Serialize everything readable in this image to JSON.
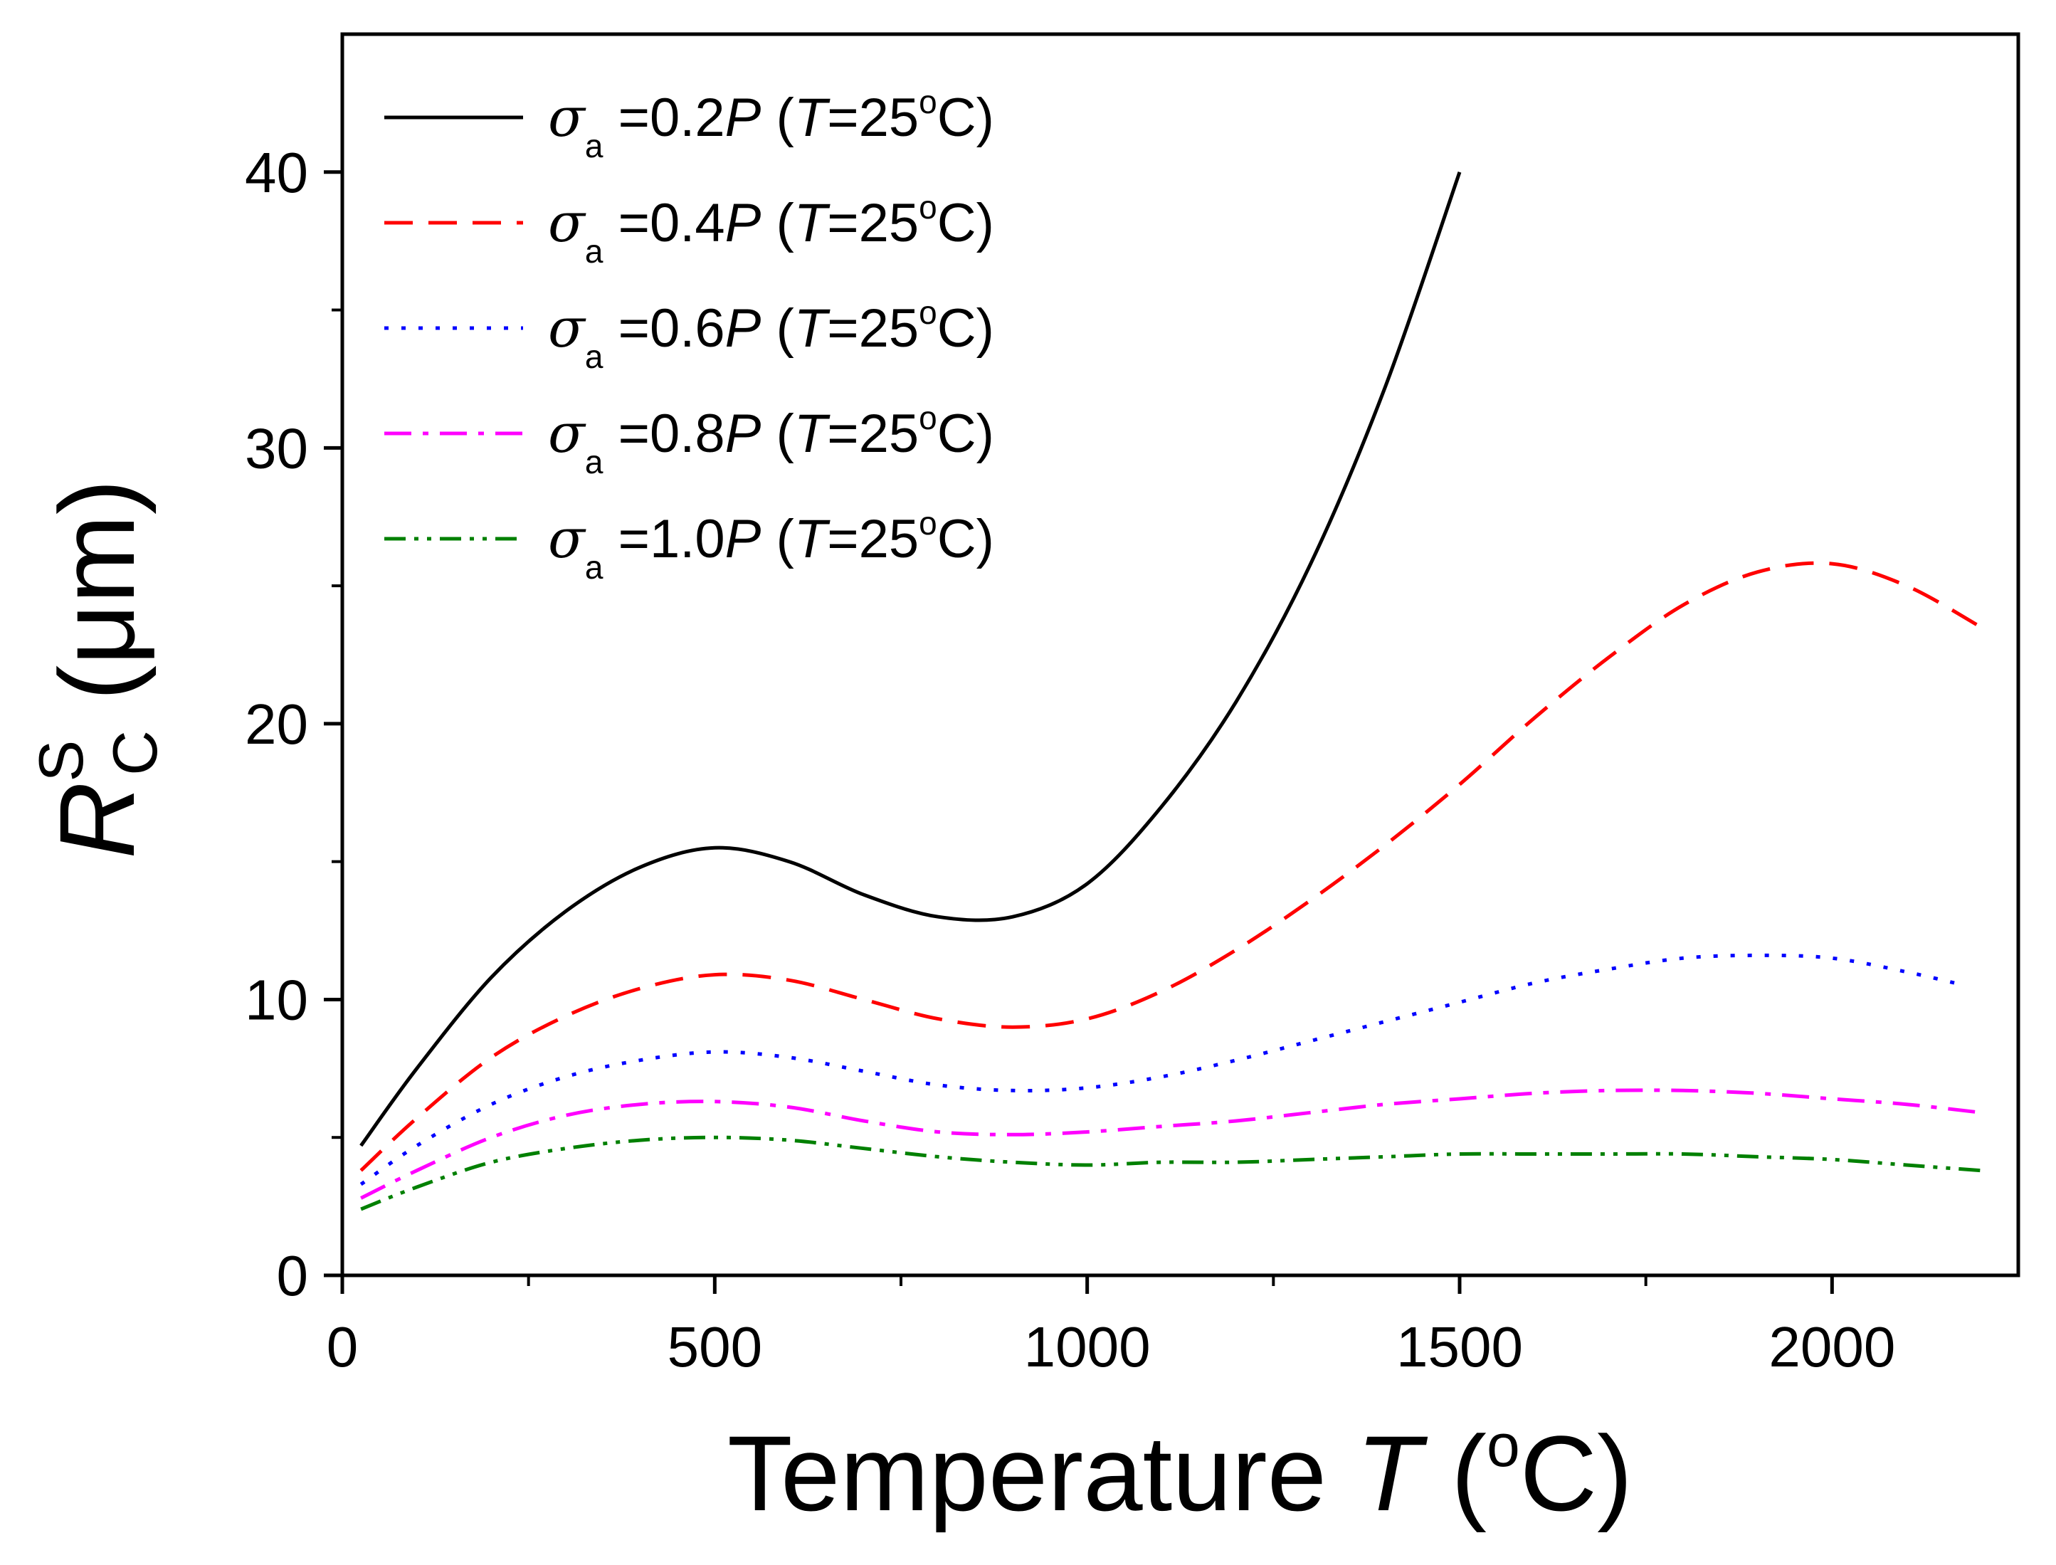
{
  "chart_data": {
    "type": "line",
    "xlabel": {
      "prefix": "Temperature ",
      "var": "T",
      "unit_open": " (",
      "deg": "o",
      "unit_close": "C)"
    },
    "ylabel": {
      "var": "R",
      "sup": "S",
      "sub": "C",
      "unit": " (μm)"
    },
    "xlim": [
      0,
      2250
    ],
    "ylim": [
      0,
      45
    ],
    "xticks": [
      0,
      500,
      1000,
      1500,
      2000
    ],
    "xtick_labels": [
      "0",
      "500",
      "1000",
      "1500",
      "2000"
    ],
    "xminor": [
      250,
      750,
      1250,
      1750
    ],
    "yticks": [
      0,
      10,
      20,
      30,
      40
    ],
    "ytick_labels": [
      "0",
      "10",
      "20",
      "30",
      "40"
    ],
    "yminor": [
      5,
      15,
      25,
      35
    ],
    "grid": false,
    "legend_position": "top-left",
    "series": [
      {
        "name": "σa =0.2P (T=25°C)",
        "label": {
          "sigma": "σ",
          "sub": "a",
          "pre": " =0.2",
          "P": "P",
          "open": " (",
          "T": "T",
          "temp": "=25",
          "deg": "o",
          "close": "C)"
        },
        "color": "#000000",
        "dash": "none",
        "x": [
          25,
          100,
          200,
          300,
          400,
          500,
          600,
          700,
          800,
          900,
          1000,
          1100,
          1200,
          1300,
          1400,
          1500
        ],
        "y": [
          4.7,
          7.5,
          10.8,
          13.2,
          14.8,
          15.5,
          15.0,
          13.8,
          13.0,
          13.0,
          14.2,
          17.0,
          20.8,
          25.8,
          32.2,
          40.0
        ]
      },
      {
        "name": "σa =0.4P (T=25°C)",
        "label": {
          "sigma": "σ",
          "sub": "a",
          "pre": " =0.4",
          "P": "P",
          "open": " (",
          "T": "T",
          "temp": "=25",
          "deg": "o",
          "close": "C)"
        },
        "color": "#ff0000",
        "dash": "40,22",
        "x": [
          25,
          100,
          200,
          300,
          400,
          500,
          600,
          700,
          800,
          900,
          1000,
          1100,
          1200,
          1300,
          1400,
          1500,
          1600,
          1700,
          1800,
          1900,
          2000,
          2100,
          2200
        ],
        "y": [
          3.8,
          5.7,
          7.9,
          9.4,
          10.4,
          10.9,
          10.7,
          10.0,
          9.3,
          9.0,
          9.3,
          10.3,
          11.8,
          13.6,
          15.6,
          17.8,
          20.2,
          22.4,
          24.3,
          25.5,
          25.8,
          25.0,
          23.5
        ]
      },
      {
        "name": "σa =0.6P (T=25°C)",
        "label": {
          "sigma": "σ",
          "sub": "a",
          "pre": " =0.6",
          "P": "P",
          "open": " (",
          "T": "T",
          "temp": "=25",
          "deg": "o",
          "close": "C)"
        },
        "color": "#0000ff",
        "dash": "6,18",
        "x": [
          25,
          100,
          200,
          300,
          400,
          500,
          600,
          700,
          800,
          900,
          1000,
          1100,
          1200,
          1300,
          1400,
          1500,
          1600,
          1700,
          1800,
          1900,
          2000,
          2100,
          2180
        ],
        "y": [
          3.3,
          4.7,
          6.2,
          7.2,
          7.8,
          8.1,
          7.9,
          7.4,
          6.9,
          6.7,
          6.8,
          7.2,
          7.8,
          8.5,
          9.2,
          9.9,
          10.6,
          11.1,
          11.5,
          11.6,
          11.5,
          11.0,
          10.5
        ]
      },
      {
        "name": "σa =0.8P (T=25°C)",
        "label": {
          "sigma": "σ",
          "sub": "a",
          "pre": " =0.8",
          "P": "P",
          "open": " (",
          "T": "T",
          "temp": "=25",
          "deg": "o",
          "close": "C)"
        },
        "color": "#ff00ff",
        "dash": "38,16,8,16",
        "x": [
          25,
          100,
          200,
          300,
          400,
          500,
          600,
          700,
          800,
          900,
          1000,
          1100,
          1200,
          1300,
          1400,
          1500,
          1600,
          1700,
          1800,
          1900,
          2000,
          2100,
          2200
        ],
        "y": [
          2.8,
          3.8,
          5.0,
          5.8,
          6.2,
          6.3,
          6.1,
          5.6,
          5.2,
          5.1,
          5.2,
          5.4,
          5.6,
          5.9,
          6.2,
          6.4,
          6.6,
          6.7,
          6.7,
          6.6,
          6.4,
          6.2,
          5.9
        ]
      },
      {
        "name": "σa =1.0P (T=25°C)",
        "label": {
          "sigma": "σ",
          "sub": "a",
          "pre": " =1.0",
          "P": "P",
          "open": " (",
          "T": "T",
          "temp": "=25",
          "deg": "o",
          "close": "C)"
        },
        "color": "#008000",
        "dash": "30,12,6,12,6,12",
        "x": [
          25,
          100,
          200,
          300,
          400,
          500,
          600,
          700,
          800,
          900,
          1000,
          1100,
          1200,
          1300,
          1400,
          1500,
          1600,
          1700,
          1800,
          1900,
          2000,
          2100,
          2200
        ],
        "y": [
          2.4,
          3.2,
          4.1,
          4.6,
          4.9,
          5.0,
          4.9,
          4.6,
          4.3,
          4.1,
          4.0,
          4.1,
          4.1,
          4.2,
          4.3,
          4.4,
          4.4,
          4.4,
          4.4,
          4.3,
          4.2,
          4.0,
          3.8
        ]
      }
    ]
  }
}
